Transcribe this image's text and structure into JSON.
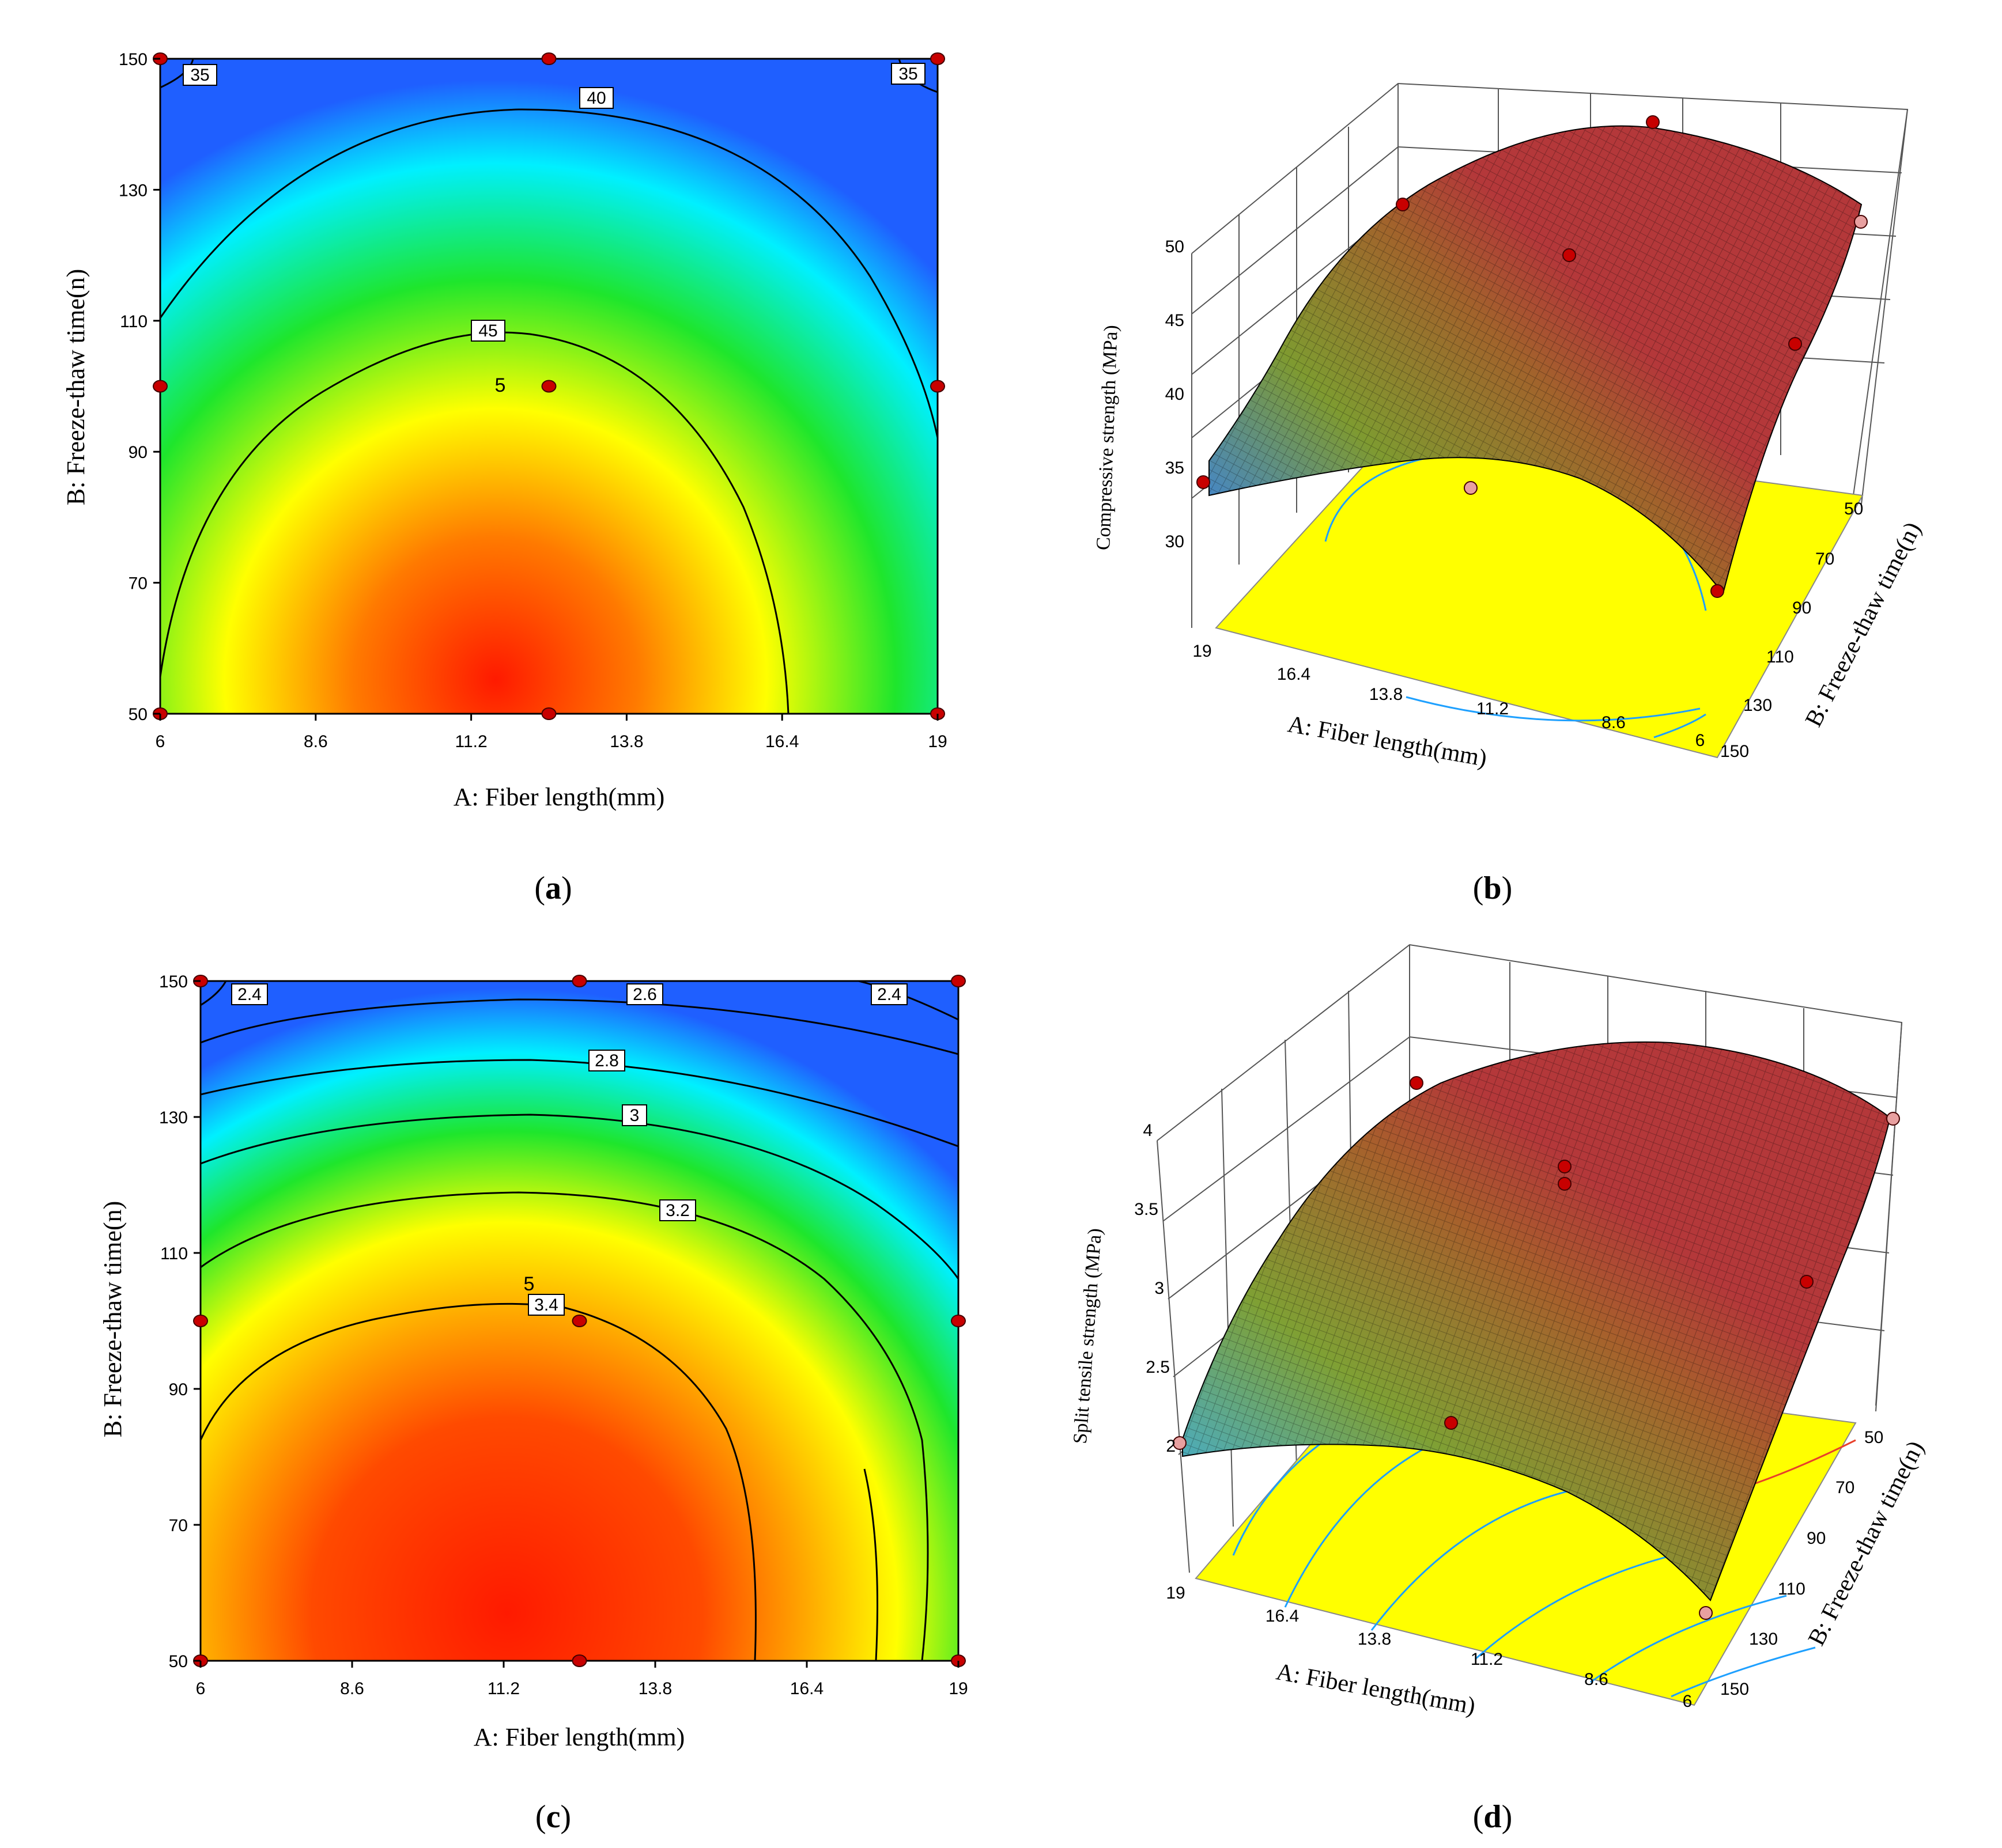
{
  "colors": {
    "low": "#1f5fff",
    "cyan": "#00f0ff",
    "green": "#1ee62c",
    "yellow": "#ffff00",
    "orange": "#ffb300",
    "red": "#ff1a00",
    "point": "#c80000",
    "base": "#ffff00",
    "surface_low": "#2f7fff",
    "surface_mid": "#7a8a2a",
    "surface_high": "#b4383a"
  },
  "panels": [
    {
      "id": "a",
      "letter": "a",
      "chart_data": {
        "type": "contour",
        "xlabel": "A: Fiber length(mm)",
        "ylabel": "B: Freeze-thaw time(n)",
        "xlim": [
          6,
          19
        ],
        "ylim": [
          50,
          150
        ],
        "xticks": [
          "6",
          "8.6",
          "11.2",
          "13.8",
          "16.4",
          "19"
        ],
        "yticks": [
          "50",
          "70",
          "90",
          "110",
          "130",
          "150"
        ],
        "center": {
          "x": 11.5,
          "y": 58
        },
        "levels": [
          35,
          40,
          45
        ],
        "contour_labels": [
          "35",
          "35",
          "40",
          "45"
        ],
        "center_label": "5",
        "points": [
          [
            6,
            50
          ],
          [
            12.5,
            50
          ],
          [
            19,
            50
          ],
          [
            6,
            100
          ],
          [
            12.5,
            100
          ],
          [
            19,
            100
          ],
          [
            6,
            150
          ],
          [
            12.5,
            150
          ],
          [
            19,
            150
          ]
        ]
      }
    },
    {
      "id": "b",
      "letter": "b",
      "chart_data": {
        "type": "surface",
        "zlabel": "Compressive strength (MPa)",
        "xlabel": "A: Fiber length(mm)",
        "ylabel": "B: Freeze-thaw time(n)",
        "zlim": [
          30,
          50
        ],
        "zticks": [
          "30",
          "35",
          "40",
          "45",
          "50"
        ],
        "xticks": [
          "19",
          "16.4",
          "13.8",
          "11.2",
          "8.6",
          "6"
        ],
        "yticks": [
          "50",
          "70",
          "90",
          "110",
          "130",
          "150"
        ]
      }
    },
    {
      "id": "c",
      "letter": "c",
      "chart_data": {
        "type": "contour",
        "xlabel": "A: Fiber length(mm)",
        "ylabel": "B: Freeze-thaw time(n)",
        "xlim": [
          6,
          19
        ],
        "ylim": [
          50,
          150
        ],
        "xticks": [
          "6",
          "8.6",
          "11.2",
          "13.8",
          "16.4",
          "19"
        ],
        "yticks": [
          "50",
          "70",
          "90",
          "110",
          "130",
          "150"
        ],
        "center": {
          "x": 11.0,
          "y": 58
        },
        "levels": [
          2.4,
          2.6,
          2.8,
          3.0,
          3.2,
          3.4
        ],
        "contour_labels": [
          "2.4",
          "2.6",
          "2.4",
          "2.8",
          "3",
          "3.2",
          "3.4"
        ],
        "center_label": "5",
        "points": [
          [
            6,
            50
          ],
          [
            12.5,
            50
          ],
          [
            19,
            50
          ],
          [
            6,
            100
          ],
          [
            12.5,
            100
          ],
          [
            19,
            100
          ],
          [
            6,
            150
          ],
          [
            12.5,
            150
          ],
          [
            19,
            150
          ]
        ]
      }
    },
    {
      "id": "d",
      "letter": "d",
      "chart_data": {
        "type": "surface",
        "zlabel": "Split tensile strength (MPa)",
        "xlabel": "A: Fiber length(mm)",
        "ylabel": "B: Freeze-thaw time(n)",
        "zlim": [
          2,
          4
        ],
        "zticks": [
          "2",
          "2.5",
          "3",
          "3.5",
          "4"
        ],
        "xticks": [
          "19",
          "16.4",
          "13.8",
          "11.2",
          "8.6",
          "6"
        ],
        "yticks": [
          "50",
          "70",
          "90",
          "110",
          "130",
          "150"
        ]
      }
    }
  ]
}
